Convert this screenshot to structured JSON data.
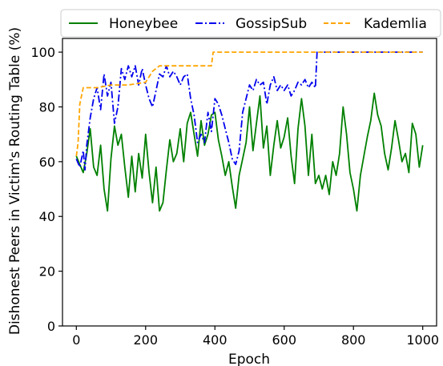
{
  "chart_data": {
    "type": "line",
    "xlabel": "Epoch",
    "ylabel": "Dishonest Peers in Victim's Routing Table (%)",
    "xlim": [
      -40,
      1040
    ],
    "ylim": [
      0,
      105
    ],
    "xticks": [
      0,
      200,
      400,
      600,
      800,
      1000
    ],
    "yticks": [
      0,
      20,
      40,
      60,
      80,
      100
    ],
    "xtick_labels": [
      "0",
      "200",
      "400",
      "600",
      "800",
      "1000"
    ],
    "ytick_labels": [
      "0",
      "20",
      "40",
      "60",
      "80",
      "100"
    ],
    "grid": false,
    "legend_position": "top",
    "series": [
      {
        "name": "Honeybee",
        "color": "#008000",
        "style": "solid",
        "points": [
          [
            0,
            62
          ],
          [
            10,
            59
          ],
          [
            20,
            56
          ],
          [
            30,
            63
          ],
          [
            40,
            72
          ],
          [
            50,
            58
          ],
          [
            60,
            55
          ],
          [
            70,
            66
          ],
          [
            80,
            50
          ],
          [
            90,
            42
          ],
          [
            100,
            61
          ],
          [
            110,
            73
          ],
          [
            120,
            66
          ],
          [
            130,
            70
          ],
          [
            140,
            58
          ],
          [
            150,
            47
          ],
          [
            160,
            62
          ],
          [
            170,
            49
          ],
          [
            180,
            63
          ],
          [
            190,
            54
          ],
          [
            200,
            70
          ],
          [
            210,
            56
          ],
          [
            220,
            45
          ],
          [
            230,
            58
          ],
          [
            240,
            42
          ],
          [
            250,
            45
          ],
          [
            260,
            57
          ],
          [
            270,
            68
          ],
          [
            280,
            60
          ],
          [
            290,
            63
          ],
          [
            300,
            72
          ],
          [
            310,
            60
          ],
          [
            320,
            74
          ],
          [
            330,
            78
          ],
          [
            340,
            70
          ],
          [
            350,
            62
          ],
          [
            360,
            75
          ],
          [
            370,
            66
          ],
          [
            380,
            70
          ],
          [
            390,
            77
          ],
          [
            400,
            78
          ],
          [
            410,
            68
          ],
          [
            420,
            62
          ],
          [
            430,
            55
          ],
          [
            440,
            60
          ],
          [
            450,
            51
          ],
          [
            460,
            43
          ],
          [
            470,
            55
          ],
          [
            480,
            61
          ],
          [
            490,
            67
          ],
          [
            500,
            80
          ],
          [
            510,
            64
          ],
          [
            520,
            74
          ],
          [
            530,
            84
          ],
          [
            540,
            65
          ],
          [
            550,
            73
          ],
          [
            560,
            55
          ],
          [
            570,
            66
          ],
          [
            580,
            75
          ],
          [
            590,
            65
          ],
          [
            600,
            69
          ],
          [
            610,
            76
          ],
          [
            620,
            62
          ],
          [
            630,
            52
          ],
          [
            640,
            72
          ],
          [
            650,
            83
          ],
          [
            660,
            73
          ],
          [
            670,
            55
          ],
          [
            680,
            70
          ],
          [
            690,
            52
          ],
          [
            700,
            55
          ],
          [
            710,
            50
          ],
          [
            720,
            55
          ],
          [
            730,
            48
          ],
          [
            740,
            60
          ],
          [
            750,
            55
          ],
          [
            760,
            63
          ],
          [
            770,
            80
          ],
          [
            780,
            70
          ],
          [
            790,
            56
          ],
          [
            800,
            50
          ],
          [
            810,
            42
          ],
          [
            820,
            55
          ],
          [
            830,
            62
          ],
          [
            840,
            69
          ],
          [
            850,
            75
          ],
          [
            860,
            85
          ],
          [
            870,
            77
          ],
          [
            880,
            73
          ],
          [
            890,
            63
          ],
          [
            900,
            57
          ],
          [
            910,
            65
          ],
          [
            920,
            75
          ],
          [
            930,
            68
          ],
          [
            940,
            60
          ],
          [
            950,
            63
          ],
          [
            960,
            56
          ],
          [
            970,
            74
          ],
          [
            980,
            70
          ],
          [
            990,
            58
          ],
          [
            1000,
            66
          ]
        ]
      },
      {
        "name": "GossipSub",
        "color": "#0000ee",
        "style": "dashdot",
        "points": [
          [
            0,
            61
          ],
          [
            10,
            58
          ],
          [
            20,
            64
          ],
          [
            25,
            57
          ],
          [
            30,
            66
          ],
          [
            40,
            76
          ],
          [
            50,
            83
          ],
          [
            60,
            87
          ],
          [
            70,
            79
          ],
          [
            80,
            92
          ],
          [
            90,
            84
          ],
          [
            100,
            89
          ],
          [
            110,
            74
          ],
          [
            120,
            80
          ],
          [
            130,
            94
          ],
          [
            140,
            90
          ],
          [
            150,
            95
          ],
          [
            160,
            91
          ],
          [
            170,
            95
          ],
          [
            180,
            88
          ],
          [
            190,
            94
          ],
          [
            200,
            88
          ],
          [
            210,
            83
          ],
          [
            220,
            80
          ],
          [
            230,
            86
          ],
          [
            240,
            92
          ],
          [
            250,
            91
          ],
          [
            260,
            95
          ],
          [
            270,
            91
          ],
          [
            280,
            93
          ],
          [
            290,
            91
          ],
          [
            300,
            88
          ],
          [
            310,
            91
          ],
          [
            320,
            92
          ],
          [
            330,
            83
          ],
          [
            340,
            77
          ],
          [
            350,
            67
          ],
          [
            360,
            70
          ],
          [
            370,
            67
          ],
          [
            380,
            78
          ],
          [
            390,
            71
          ],
          [
            400,
            83
          ],
          [
            410,
            81
          ],
          [
            420,
            77
          ],
          [
            430,
            72
          ],
          [
            440,
            67
          ],
          [
            450,
            61
          ],
          [
            460,
            59
          ],
          [
            470,
            64
          ],
          [
            480,
            78
          ],
          [
            490,
            83
          ],
          [
            500,
            88
          ],
          [
            510,
            86
          ],
          [
            520,
            90
          ],
          [
            530,
            88
          ],
          [
            540,
            89
          ],
          [
            550,
            81
          ],
          [
            560,
            88
          ],
          [
            570,
            91
          ],
          [
            580,
            86
          ],
          [
            590,
            88
          ],
          [
            600,
            86
          ],
          [
            610,
            88
          ],
          [
            620,
            84
          ],
          [
            630,
            86
          ],
          [
            640,
            89
          ],
          [
            650,
            88
          ],
          [
            660,
            90
          ],
          [
            670,
            87
          ],
          [
            680,
            89
          ],
          [
            690,
            87
          ],
          [
            695,
            100
          ],
          [
            1000,
            100
          ]
        ]
      },
      {
        "name": "Kademlia",
        "color": "#ffa500",
        "style": "dashed",
        "points": [
          [
            0,
            62
          ],
          [
            5,
            67
          ],
          [
            10,
            81
          ],
          [
            20,
            87
          ],
          [
            60,
            87
          ],
          [
            100,
            88
          ],
          [
            150,
            88
          ],
          [
            200,
            89
          ],
          [
            210,
            91
          ],
          [
            220,
            93
          ],
          [
            240,
            95
          ],
          [
            300,
            95
          ],
          [
            390,
            95
          ],
          [
            395,
            100
          ],
          [
            1000,
            100
          ]
        ]
      }
    ]
  }
}
